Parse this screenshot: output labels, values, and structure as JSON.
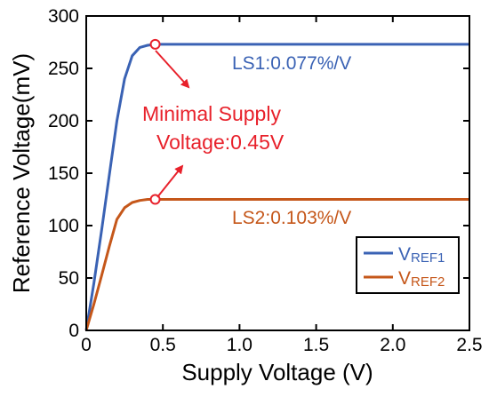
{
  "chart_data": {
    "type": "line",
    "xlabel": "Supply Voltage (V)",
    "ylabel": "Reference Voltage(mV)",
    "xlim": [
      0,
      2.5
    ],
    "ylim": [
      0,
      300
    ],
    "xticks": [
      0,
      0.5,
      1.0,
      1.5,
      2.0,
      2.5
    ],
    "xtick_labels": [
      "0",
      "0.5",
      "1.0",
      "1.5",
      "2.0",
      "2.5"
    ],
    "yticks": [
      0,
      50,
      100,
      150,
      200,
      250,
      300
    ],
    "ytick_labels": [
      "0",
      "50",
      "100",
      "150",
      "200",
      "250",
      "300"
    ],
    "grid": false,
    "legend_position": "bottom-right",
    "series": [
      {
        "name": "VREF1",
        "legend_main": "V",
        "legend_sub": "REF1",
        "color": "#3a62b4",
        "x": [
          0,
          0.05,
          0.1,
          0.15,
          0.2,
          0.25,
          0.3,
          0.35,
          0.4,
          0.45,
          2.5
        ],
        "y": [
          0,
          45,
          95,
          148,
          200,
          240,
          262,
          270,
          272,
          273,
          273
        ]
      },
      {
        "name": "VREF2",
        "legend_main": "V",
        "legend_sub": "REF2",
        "color": "#c5571a",
        "x": [
          0,
          0.05,
          0.1,
          0.15,
          0.2,
          0.25,
          0.3,
          0.35,
          0.4,
          0.45,
          2.5
        ],
        "y": [
          0,
          25,
          52,
          80,
          106,
          117,
          122,
          124,
          125,
          125,
          125
        ]
      }
    ],
    "markers": [
      {
        "series": 0,
        "x": 0.45,
        "y": 273,
        "color": "#e8212b"
      },
      {
        "series": 1,
        "x": 0.45,
        "y": 125,
        "color": "#e8212b"
      }
    ],
    "annotations": {
      "ls1": {
        "text": "LS1:0.077%/V",
        "color": "#3a62b4"
      },
      "ls2": {
        "text": "LS2:0.103%/V",
        "color": "#c5571a"
      },
      "min_supply_line1": "Minimal Supply",
      "min_supply_line2": "Voltage:0.45V",
      "min_supply_color": "#e8212b"
    }
  }
}
